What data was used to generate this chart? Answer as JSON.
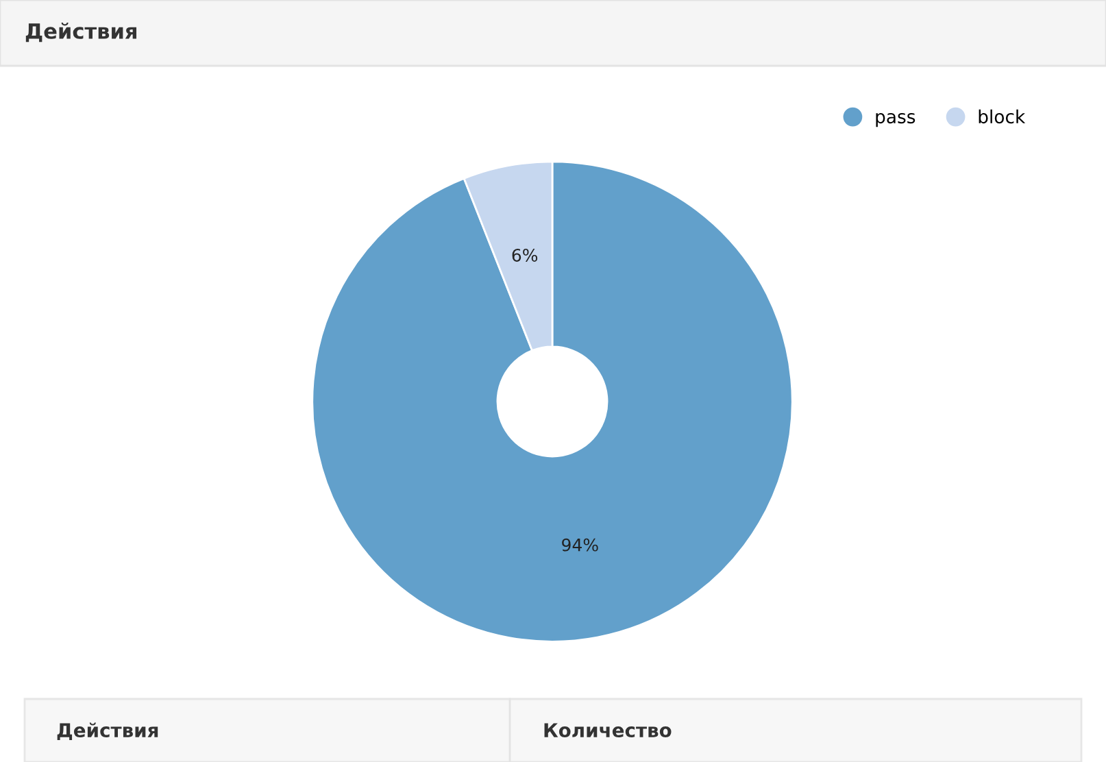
{
  "chart_data": {
    "type": "donut",
    "title": "Действия",
    "categories": [
      "pass",
      "block"
    ],
    "values": [
      94,
      6
    ],
    "colors": [
      "#62a0cb",
      "#c6d7ef"
    ],
    "value_labels": [
      "94%",
      "6%"
    ],
    "legend": "top right",
    "marker": "circle",
    "annotations": [
      "Действия",
      "Количество"
    ]
  }
}
